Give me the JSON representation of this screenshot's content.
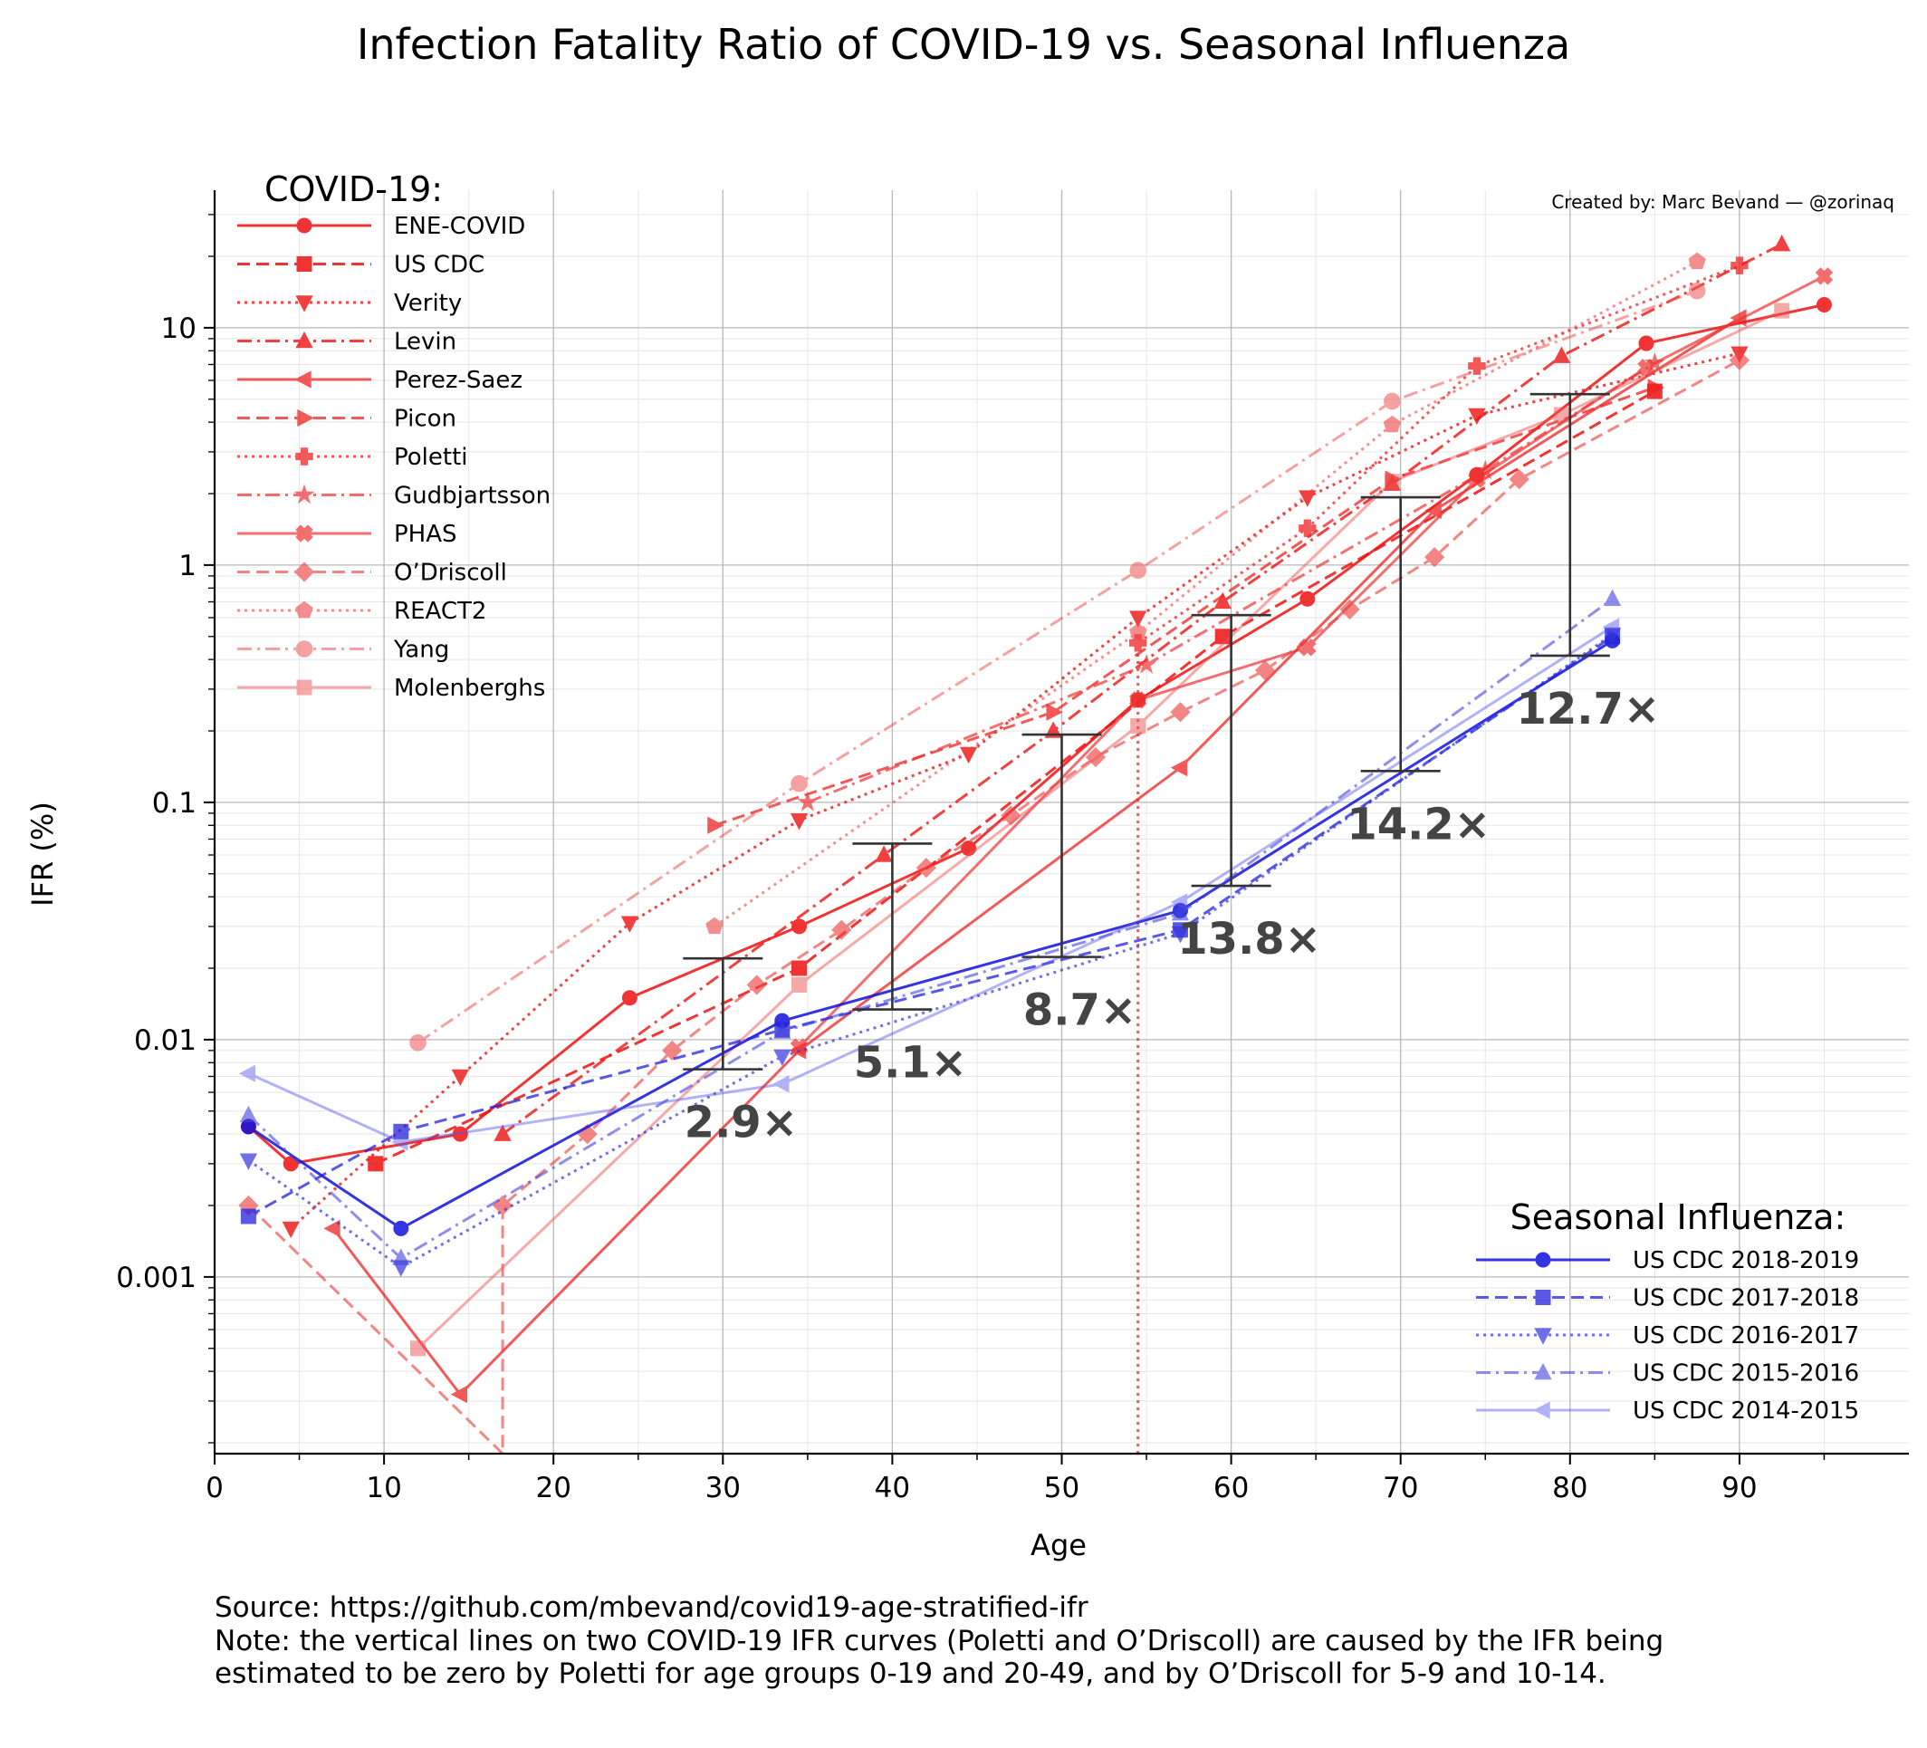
{
  "title": "Infection Fatality Ratio of COVID-19 vs. Seasonal Influenza",
  "credit": "Created by: Marc Bevand — @zorinaq",
  "footer": {
    "source": "Source: https://github.com/mbevand/covid19-age-stratified-ifr",
    "note_line1": "Note: the vertical lines on two COVID-19 IFR curves (Poletti and O’Driscoll) are caused by the IFR being",
    "note_line2": "estimated to be zero by Poletti for age groups 0-19 and 20-49, and by O’Driscoll for 5-9 and 10-14."
  },
  "chart_data": {
    "type": "line",
    "title": "Infection Fatality Ratio of COVID-19 vs. Seasonal Influenza",
    "xlabel": "Age",
    "ylabel": "IFR (%)",
    "xlim": [
      0,
      100
    ],
    "ylim": [
      0.00018,
      38
    ],
    "yscale": "log",
    "x_ticks": [
      0,
      10,
      20,
      30,
      40,
      50,
      60,
      70,
      80,
      90
    ],
    "y_ticks": [
      {
        "value": 0.001,
        "label": "0.001"
      },
      {
        "value": 0.01,
        "label": "0.01"
      },
      {
        "value": 0.1,
        "label": "0.1"
      },
      {
        "value": 1,
        "label": "1"
      },
      {
        "value": 10,
        "label": "10"
      }
    ],
    "grid": true,
    "legends": [
      {
        "title": "COVID-19:",
        "placement": "top-left",
        "group": "covid"
      },
      {
        "title": "Seasonal Influenza:",
        "placement": "bottom-right",
        "group": "flu"
      }
    ],
    "series": [
      {
        "name": "ENE-COVID",
        "group": "covid",
        "color": "#ee1111",
        "opacity": 0.85,
        "dash": "solid",
        "marker": "circle",
        "points": [
          [
            2,
            0.0043
          ],
          [
            4.5,
            0.003
          ],
          [
            14.5,
            0.004
          ],
          [
            24.5,
            0.015
          ],
          [
            34.5,
            0.03
          ],
          [
            44.5,
            0.064
          ],
          [
            54.5,
            0.27
          ],
          [
            64.5,
            0.72
          ],
          [
            74.5,
            2.4
          ],
          [
            84.5,
            8.6
          ],
          [
            95,
            12.5
          ]
        ]
      },
      {
        "name": "US CDC",
        "group": "covid",
        "color": "#ee1111",
        "opacity": 0.85,
        "dash": "dashed",
        "marker": "square",
        "points": [
          [
            9.5,
            0.003
          ],
          [
            34.5,
            0.02
          ],
          [
            59.5,
            0.5
          ],
          [
            85,
            5.4
          ]
        ]
      },
      {
        "name": "Verity",
        "group": "covid",
        "color": "#ee1111",
        "opacity": 0.8,
        "dash": "dotted",
        "marker": "triangle-down",
        "points": [
          [
            4.5,
            0.0016
          ],
          [
            14.5,
            0.007
          ],
          [
            24.5,
            0.031
          ],
          [
            34.5,
            0.084
          ],
          [
            44.5,
            0.16
          ],
          [
            54.5,
            0.6
          ],
          [
            64.5,
            1.93
          ],
          [
            74.5,
            4.28
          ],
          [
            90,
            7.8
          ]
        ]
      },
      {
        "name": "Levin",
        "group": "covid",
        "color": "#ee1111",
        "opacity": 0.8,
        "dash": "dashdot",
        "marker": "triangle-up",
        "points": [
          [
            17,
            0.004
          ],
          [
            39.5,
            0.06
          ],
          [
            49.5,
            0.2
          ],
          [
            59.5,
            0.7
          ],
          [
            69.5,
            2.2
          ],
          [
            79.5,
            7.6
          ],
          [
            92.5,
            22.5
          ]
        ]
      },
      {
        "name": "Perez-Saez",
        "group": "covid",
        "color": "#ee2222",
        "opacity": 0.75,
        "dash": "solid",
        "marker": "triangle-left",
        "points": [
          [
            7,
            0.0016
          ],
          [
            14.5,
            0.00032
          ],
          [
            34.5,
            0.009
          ],
          [
            57,
            0.14
          ],
          [
            72,
            1.7
          ],
          [
            90,
            11
          ]
        ]
      },
      {
        "name": "Picon",
        "group": "covid",
        "color": "#ee2222",
        "opacity": 0.75,
        "dash": "dashed",
        "marker": "triangle-right",
        "points": [
          [
            29.5,
            0.08
          ],
          [
            49.5,
            0.24
          ],
          [
            69.5,
            2.3
          ],
          [
            85,
            5.6
          ]
        ]
      },
      {
        "name": "Poletti",
        "group": "covid",
        "color": "#ee2222",
        "opacity": 0.75,
        "dash": "dotted",
        "marker": "plus",
        "points": [
          [
            54.5,
            0.00018
          ],
          [
            54.5,
            0.47
          ],
          [
            64.5,
            1.43
          ],
          [
            74.5,
            6.9
          ],
          [
            90,
            18.3
          ]
        ]
      },
      {
        "name": "Gudbjartsson",
        "group": "covid",
        "color": "#ee3333",
        "opacity": 0.7,
        "dash": "dashdot",
        "marker": "star",
        "points": [
          [
            35,
            0.1
          ],
          [
            55,
            0.38
          ],
          [
            75,
            2.5
          ],
          [
            85,
            7.1
          ]
        ]
      },
      {
        "name": "PHAS",
        "group": "covid",
        "color": "#ee3333",
        "opacity": 0.7,
        "dash": "solid",
        "marker": "x",
        "points": [
          [
            34.5,
            0.0093
          ],
          [
            54.5,
            0.27
          ],
          [
            64.5,
            0.45
          ],
          [
            74.5,
            2.3
          ],
          [
            84.5,
            6.8
          ],
          [
            95,
            16.5
          ]
        ]
      },
      {
        "name": "O’Driscoll",
        "group": "covid",
        "color": "#ee4444",
        "opacity": 0.65,
        "dash": "dashed",
        "marker": "diamond",
        "points": [
          [
            2,
            0.002
          ],
          [
            17,
            0.00018
          ],
          [
            17,
            0.002
          ],
          [
            22,
            0.004
          ],
          [
            27,
            0.009
          ],
          [
            32,
            0.017
          ],
          [
            37,
            0.029
          ],
          [
            42,
            0.053
          ],
          [
            47,
            0.088
          ],
          [
            52,
            0.155
          ],
          [
            57,
            0.24
          ],
          [
            62,
            0.36
          ],
          [
            67,
            0.65
          ],
          [
            72,
            1.08
          ],
          [
            77,
            2.3
          ],
          [
            90,
            7.3
          ]
        ]
      },
      {
        "name": "REACT2",
        "group": "covid",
        "color": "#ee4444",
        "opacity": 0.6,
        "dash": "dotted",
        "marker": "pentagon",
        "points": [
          [
            29.5,
            0.03
          ],
          [
            54.5,
            0.52
          ],
          [
            69.5,
            3.9
          ],
          [
            87.5,
            19
          ]
        ]
      },
      {
        "name": "Yang",
        "group": "covid",
        "color": "#ee5555",
        "opacity": 0.55,
        "dash": "dashdot",
        "marker": "octagon",
        "points": [
          [
            12,
            0.0097
          ],
          [
            34.5,
            0.12
          ],
          [
            54.5,
            0.95
          ],
          [
            69.5,
            4.9
          ],
          [
            87.5,
            14.3
          ]
        ]
      },
      {
        "name": "Molenberghs",
        "group": "covid",
        "color": "#ee5555",
        "opacity": 0.5,
        "dash": "solid",
        "marker": "square",
        "points": [
          [
            12,
            0.0005
          ],
          [
            34.5,
            0.017
          ],
          [
            54.5,
            0.21
          ],
          [
            69.5,
            2.25
          ],
          [
            79.5,
            4.3
          ],
          [
            92.5,
            11.8
          ]
        ]
      },
      {
        "name": "US CDC 2018-2019",
        "group": "flu",
        "color": "#1111dd",
        "opacity": 0.85,
        "dash": "solid",
        "marker": "circle",
        "points": [
          [
            2,
            0.0043
          ],
          [
            11,
            0.0016
          ],
          [
            33.5,
            0.012
          ],
          [
            57,
            0.035
          ],
          [
            82.5,
            0.48
          ]
        ]
      },
      {
        "name": "US CDC 2017-2018",
        "group": "flu",
        "color": "#2222dd",
        "opacity": 0.75,
        "dash": "dashed",
        "marker": "square",
        "points": [
          [
            2,
            0.0018
          ],
          [
            11,
            0.0041
          ],
          [
            33.5,
            0.011
          ],
          [
            57,
            0.029
          ],
          [
            82.5,
            0.5
          ]
        ]
      },
      {
        "name": "US CDC 2016-2017",
        "group": "flu",
        "color": "#3333dd",
        "opacity": 0.7,
        "dash": "dotted",
        "marker": "triangle-down",
        "points": [
          [
            2,
            0.0031
          ],
          [
            11,
            0.0011
          ],
          [
            33.5,
            0.0085
          ],
          [
            57,
            0.028
          ],
          [
            82.5,
            0.51
          ]
        ]
      },
      {
        "name": "US CDC 2015-2016",
        "group": "flu",
        "color": "#4444dd",
        "opacity": 0.6,
        "dash": "dashdot",
        "marker": "triangle-up",
        "points": [
          [
            2,
            0.0048
          ],
          [
            11,
            0.0012
          ],
          [
            33.5,
            0.0108
          ],
          [
            57,
            0.034
          ],
          [
            82.5,
            0.72
          ]
        ]
      },
      {
        "name": "US CDC 2014-2015",
        "group": "flu",
        "color": "#5555ee",
        "opacity": 0.45,
        "dash": "solid",
        "marker": "triangle-left",
        "points": [
          [
            2,
            0.0072
          ],
          [
            11,
            0.0037
          ],
          [
            33.5,
            0.0065
          ],
          [
            57,
            0.038
          ],
          [
            82.5,
            0.55
          ]
        ]
      }
    ],
    "ratio_bars": [
      {
        "x": 30,
        "low": 0.0075,
        "high": 0.022,
        "label": "2.9×"
      },
      {
        "x": 40,
        "low": 0.0134,
        "high": 0.067,
        "label": "5.1×"
      },
      {
        "x": 50,
        "low": 0.0223,
        "high": 0.193,
        "label": "8.7×"
      },
      {
        "x": 60,
        "low": 0.0445,
        "high": 0.615,
        "label": "13.8×"
      },
      {
        "x": 70,
        "low": 0.1355,
        "high": 1.93,
        "label": "14.2×"
      },
      {
        "x": 80,
        "low": 0.415,
        "high": 5.25,
        "label": "12.7×"
      }
    ]
  }
}
